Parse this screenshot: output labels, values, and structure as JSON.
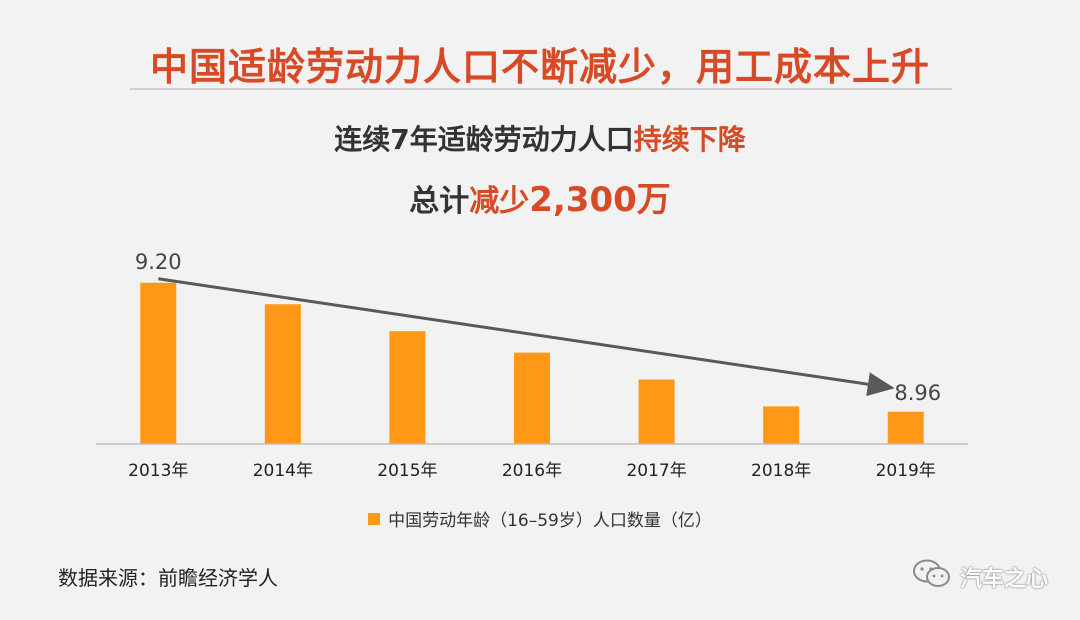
{
  "title": "中国适龄劳动力人口不断减少，用工成本上升",
  "subtitle1": {
    "prefix": "连续7年适龄劳动力人口",
    "highlight": "持续下降"
  },
  "subtitle2": {
    "prefix": "总计",
    "highlight_small": "减少",
    "highlight_big": "2,300万"
  },
  "source": "数据来源：前瞻经济学人",
  "brand": "汽车之心",
  "colors": {
    "bar": "#ff9717",
    "accent": "#d84a25",
    "trend": "#595959",
    "axis": "#bfbfbf"
  },
  "chart_data": {
    "type": "bar",
    "categories": [
      "2013年",
      "2014年",
      "2015年",
      "2016年",
      "2017年",
      "2018年",
      "2019年"
    ],
    "series": [
      {
        "name": "中国劳动年龄（16–59岁）人口数量（亿）",
        "values": [
          9.2,
          9.16,
          9.11,
          9.07,
          9.02,
          8.97,
          8.96
        ]
      }
    ],
    "data_labels": [
      {
        "category": "2013年",
        "text": "9.20"
      },
      {
        "category": "2019年",
        "text": "8.96"
      }
    ],
    "trend_arrow": {
      "from": "2013年",
      "to": "2019年"
    },
    "ylim": [
      8.9,
      9.22
    ],
    "legend": "bottom-center",
    "grid": false
  }
}
